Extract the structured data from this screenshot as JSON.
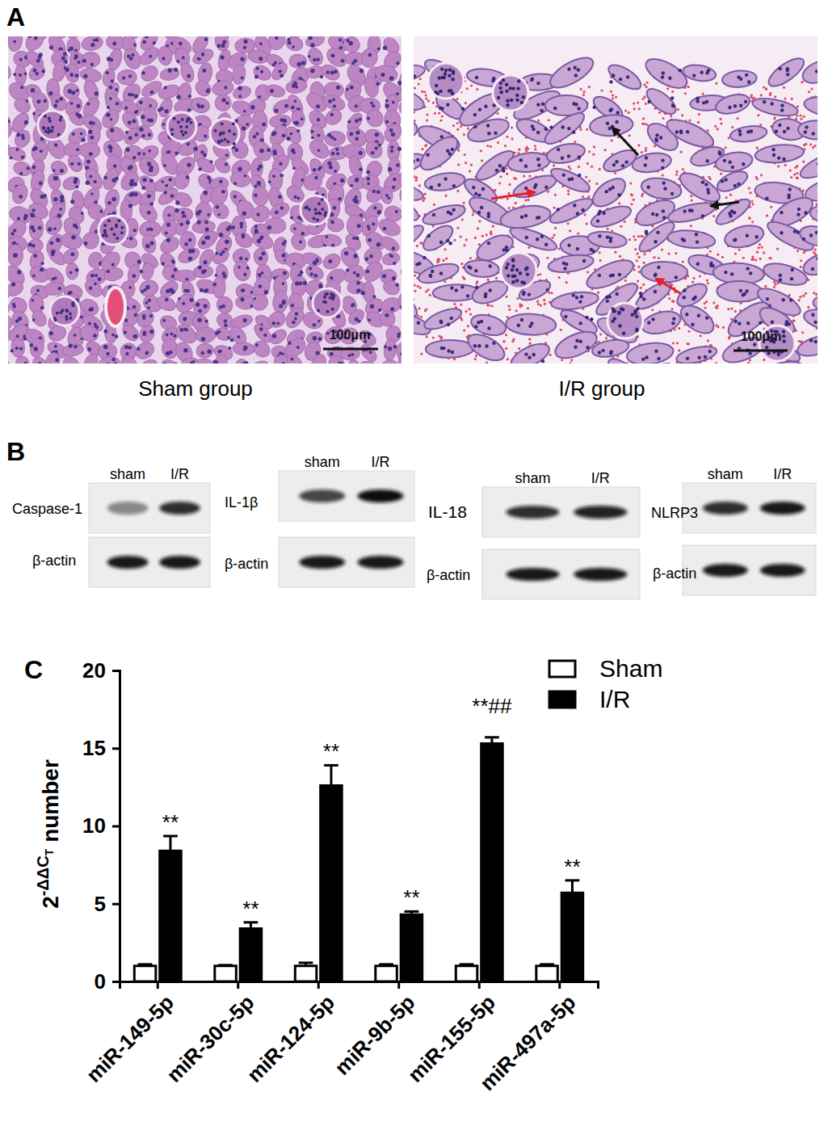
{
  "panel_labels": [
    "A",
    "B",
    "C"
  ],
  "panel_a": {
    "images": [
      {
        "label": "Sham group",
        "scale_bar": "100μm"
      },
      {
        "label": "I/R group",
        "scale_bar": "100μm"
      }
    ]
  },
  "panel_b": {
    "blots": [
      {
        "target": "Caspase-1",
        "loading": "β-actin",
        "lanes": [
          "sham",
          "I/R"
        ]
      },
      {
        "target": "IL-1β",
        "loading": "β-actin",
        "lanes": [
          "sham",
          "I/R"
        ]
      },
      {
        "target": "IL-18",
        "loading": "β-actin",
        "lanes": [
          "sham",
          "I/R"
        ]
      },
      {
        "target": "NLRP3",
        "loading": "β-actin",
        "lanes": [
          "sham",
          "I/R"
        ]
      }
    ]
  },
  "chart_data": {
    "type": "bar",
    "y_label": {
      "base": "2",
      "superscript": "-ΔΔC",
      "subscript": "T",
      "text": "number"
    },
    "categories": [
      "miR-149-5p",
      "miR-30c-5p",
      "miR-124-5p",
      "miR-9b-5p",
      "miR-155-5p",
      "miR-497a-5p"
    ],
    "series": [
      {
        "name": "Sham",
        "color": "#ffffff",
        "values": [
          1,
          1,
          1,
          1,
          1,
          1
        ],
        "errors": [
          0.1,
          0.05,
          0.2,
          0.1,
          0.1,
          0.1
        ]
      },
      {
        "name": "I/R",
        "color": "#000000",
        "values": [
          8.4,
          3.4,
          12.6,
          4.3,
          15.3,
          5.7
        ],
        "errors": [
          0.95,
          0.4,
          1.3,
          0.2,
          0.4,
          0.8
        ],
        "annotations": [
          "**",
          "**",
          "**",
          "**",
          "**##",
          "**"
        ]
      }
    ],
    "ylim": [
      0,
      20
    ],
    "yticks": [
      0,
      5,
      10,
      15,
      20
    ],
    "legend": "top-right"
  }
}
